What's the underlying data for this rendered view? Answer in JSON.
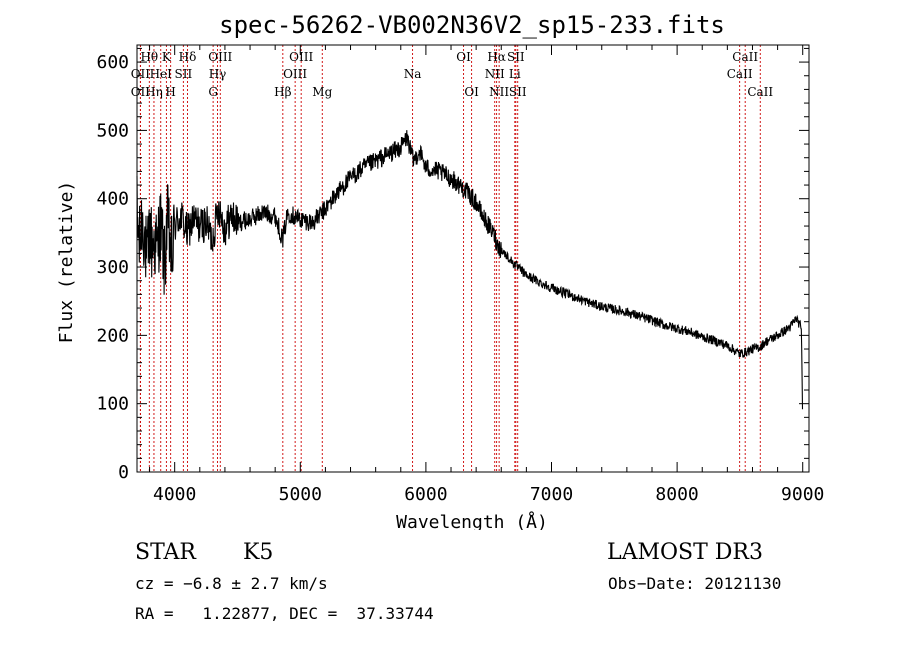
{
  "chart_data": {
    "type": "line",
    "title": "spec-56262-VB002N36V2_sp15-233.fits",
    "xlabel": "Wavelength (Å)",
    "ylabel": "Flux (relative)",
    "xlim": [
      3700,
      9050
    ],
    "ylim": [
      0,
      625
    ],
    "xticks": [
      4000,
      5000,
      6000,
      7000,
      8000,
      9000
    ],
    "yticks": [
      0,
      100,
      200,
      300,
      400,
      500,
      600
    ],
    "grid": false,
    "series": [
      {
        "name": "flux",
        "x": [
          3700,
          3720,
          3740,
          3760,
          3780,
          3800,
          3820,
          3840,
          3860,
          3880,
          3900,
          3920,
          3940,
          3960,
          3980,
          4000,
          4050,
          4100,
          4150,
          4200,
          4250,
          4300,
          4350,
          4400,
          4450,
          4500,
          4600,
          4700,
          4800,
          4860,
          4900,
          4950,
          5000,
          5100,
          5200,
          5300,
          5400,
          5500,
          5600,
          5700,
          5800,
          5850,
          5900,
          5950,
          6000,
          6100,
          6200,
          6300,
          6400,
          6450,
          6500,
          6550,
          6563,
          6600,
          6700,
          6800,
          6900,
          7000,
          7100,
          7200,
          7300,
          7400,
          7500,
          7600,
          7700,
          7800,
          7900,
          8000,
          8100,
          8200,
          8300,
          8400,
          8498,
          8542,
          8600,
          8662,
          8700,
          8800,
          8900,
          8950,
          8990,
          9000
        ],
        "y": [
          380,
          330,
          370,
          350,
          300,
          355,
          330,
          340,
          320,
          365,
          345,
          300,
          370,
          340,
          310,
          360,
          375,
          350,
          370,
          360,
          365,
          340,
          390,
          355,
          375,
          365,
          370,
          380,
          375,
          340,
          380,
          375,
          370,
          365,
          385,
          410,
          430,
          445,
          455,
          465,
          475,
          490,
          455,
          470,
          445,
          440,
          430,
          415,
          395,
          375,
          360,
          345,
          335,
          325,
          305,
          288,
          278,
          270,
          262,
          255,
          248,
          242,
          238,
          234,
          228,
          222,
          215,
          210,
          205,
          198,
          192,
          185,
          173,
          175,
          180,
          183,
          190,
          200,
          212,
          225,
          210,
          60
        ]
      }
    ],
    "lines": [
      {
        "name": "OII",
        "x": 3727,
        "row": 2
      },
      {
        "name": "OII",
        "x": 3727,
        "row": 3
      },
      {
        "name": "Hθ",
        "x": 3798,
        "row": 1
      },
      {
        "name": "Hη",
        "x": 3835,
        "row": 3
      },
      {
        "name": "HeI",
        "x": 3889,
        "row": 2
      },
      {
        "name": "K",
        "x": 3934,
        "row": 1
      },
      {
        "name": "H",
        "x": 3968,
        "row": 3
      },
      {
        "name": "SII",
        "x": 4069,
        "row": 2
      },
      {
        "name": "Hδ",
        "x": 4102,
        "row": 1
      },
      {
        "name": "G",
        "x": 4306,
        "row": 3
      },
      {
        "name": "Hγ",
        "x": 4341,
        "row": 2
      },
      {
        "name": "OIII",
        "x": 4363,
        "row": 1
      },
      {
        "name": "Hβ",
        "x": 4861,
        "row": 3
      },
      {
        "name": "OIII",
        "x": 4959,
        "row": 2
      },
      {
        "name": "OIII",
        "x": 5007,
        "row": 1
      },
      {
        "name": "Mg",
        "x": 5175,
        "row": 3
      },
      {
        "name": "Na",
        "x": 5894,
        "row": 2
      },
      {
        "name": "OI",
        "x": 6300,
        "row": 1
      },
      {
        "name": "OI",
        "x": 6364,
        "row": 3
      },
      {
        "name": "NII",
        "x": 6548,
        "row": 2
      },
      {
        "name": "Hα",
        "x": 6563,
        "row": 1
      },
      {
        "name": "NII",
        "x": 6583,
        "row": 3
      },
      {
        "name": "Li",
        "x": 6708,
        "row": 2
      },
      {
        "name": "SII",
        "x": 6716,
        "row": 1
      },
      {
        "name": "SII",
        "x": 6731,
        "row": 3
      },
      {
        "name": "CaII",
        "x": 8498,
        "row": 2
      },
      {
        "name": "CaII",
        "x": 8542,
        "row": 1
      },
      {
        "name": "CaII",
        "x": 8662,
        "row": 3
      }
    ]
  },
  "info": {
    "object_class": "STAR",
    "subclass": "K5",
    "survey": "LAMOST DR3",
    "redshift": "cz = −6.8 ± 2.7 km/s",
    "obs_date": "Obs−Date: 20121130",
    "coords": "RA =   1.22877, DEC =  37.33744"
  },
  "colors": {
    "spectrum": "#000000",
    "line_markers": "#cc0000",
    "axes": "#000000"
  }
}
